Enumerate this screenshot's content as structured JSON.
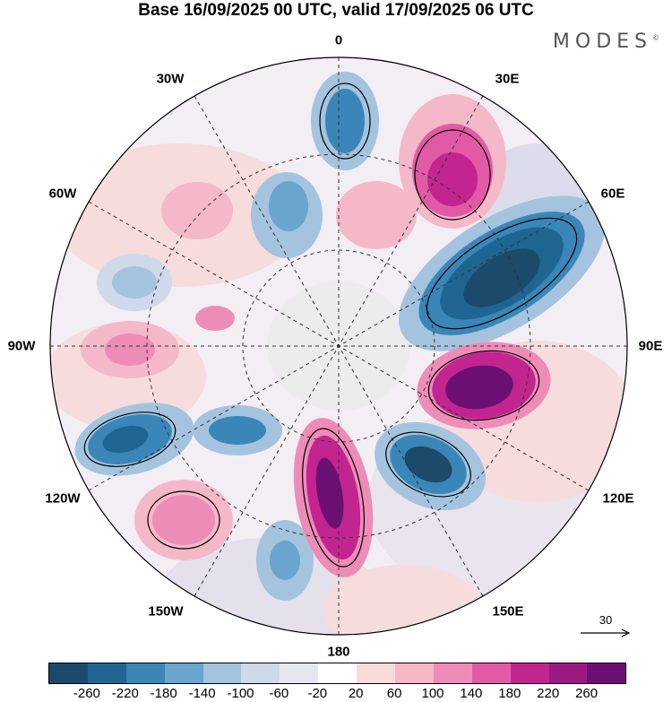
{
  "title": "Base 16/09/2025 00 UTC, valid 17/09/2025 06 UTC",
  "brand": "MODES",
  "brand_mark": "©",
  "longitude_labels": {
    "n0": "0",
    "e30": "30E",
    "e60": "60E",
    "e90": "90E",
    "e120": "120E",
    "e150": "150E",
    "s180": "180",
    "w150": "150W",
    "w120": "120W",
    "w90": "90W",
    "w60": "60W",
    "w30": "30W"
  },
  "vector_reference": "30",
  "colorbar": {
    "colors": [
      "#1b4a6b",
      "#1f6592",
      "#3a86b8",
      "#6aa5cd",
      "#a4c3de",
      "#cfd9ea",
      "#e6e6f0",
      "#ffffff",
      "#f8dada",
      "#f4b8c8",
      "#ee8cb8",
      "#e25aa6",
      "#c22590",
      "#9a1a82",
      "#6b1072"
    ],
    "tick_labels": [
      "-260",
      "-220",
      "-180",
      "-140",
      "-100",
      "-60",
      "-20",
      "20",
      "60",
      "100",
      "140",
      "180",
      "220",
      "260"
    ]
  }
}
